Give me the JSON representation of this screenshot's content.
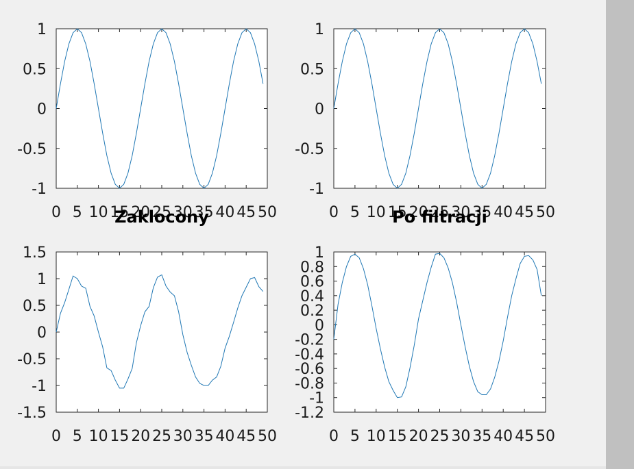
{
  "chart_data": [
    {
      "type": "line",
      "title": "",
      "xlabel": "",
      "ylabel": "",
      "xlim": [
        0,
        50
      ],
      "ylim": [
        -1,
        1
      ],
      "x_ticks": [
        "0",
        "5",
        "10",
        "15",
        "20",
        "25",
        "30",
        "35",
        "40",
        "45",
        "50"
      ],
      "y_ticks": [
        "1",
        "0.5",
        "0",
        "-0.5",
        "-1"
      ],
      "series_color": "#1f77b4",
      "x": [
        0,
        1,
        2,
        3,
        4,
        5,
        6,
        7,
        8,
        9,
        10,
        11,
        12,
        13,
        14,
        15,
        16,
        17,
        18,
        19,
        20,
        21,
        22,
        23,
        24,
        25,
        26,
        27,
        28,
        29,
        30,
        31,
        32,
        33,
        34,
        35,
        36,
        37,
        38,
        39,
        40,
        41,
        42,
        43,
        44,
        45,
        46,
        47,
        48,
        49
      ],
      "values": [
        0.0,
        0.31,
        0.59,
        0.81,
        0.95,
        1.0,
        0.95,
        0.81,
        0.59,
        0.31,
        0.0,
        -0.31,
        -0.59,
        -0.81,
        -0.95,
        -1.0,
        -0.95,
        -0.81,
        -0.59,
        -0.31,
        0.0,
        0.31,
        0.59,
        0.81,
        0.95,
        1.0,
        0.95,
        0.81,
        0.59,
        0.31,
        0.0,
        -0.31,
        -0.59,
        -0.81,
        -0.95,
        -1.0,
        -0.95,
        -0.81,
        -0.59,
        -0.31,
        0.0,
        0.31,
        0.59,
        0.81,
        0.95,
        1.0,
        0.95,
        0.81,
        0.59,
        0.31
      ]
    },
    {
      "type": "line",
      "title": "",
      "xlabel": "",
      "ylabel": "",
      "xlim": [
        0,
        50
      ],
      "ylim": [
        -1,
        1
      ],
      "x_ticks": [
        "0",
        "5",
        "10",
        "15",
        "20",
        "25",
        "30",
        "35",
        "40",
        "45",
        "50"
      ],
      "y_ticks": [
        "1",
        "0.5",
        "0",
        "-0.5",
        "-1"
      ],
      "series_color": "#1f77b4",
      "x": [
        0,
        1,
        2,
        3,
        4,
        5,
        6,
        7,
        8,
        9,
        10,
        11,
        12,
        13,
        14,
        15,
        16,
        17,
        18,
        19,
        20,
        21,
        22,
        23,
        24,
        25,
        26,
        27,
        28,
        29,
        30,
        31,
        32,
        33,
        34,
        35,
        36,
        37,
        38,
        39,
        40,
        41,
        42,
        43,
        44,
        45,
        46,
        47,
        48,
        49
      ],
      "values": [
        0.0,
        0.31,
        0.59,
        0.81,
        0.95,
        1.0,
        0.95,
        0.81,
        0.59,
        0.31,
        0.0,
        -0.31,
        -0.59,
        -0.81,
        -0.95,
        -1.0,
        -0.95,
        -0.81,
        -0.59,
        -0.31,
        0.0,
        0.31,
        0.59,
        0.81,
        0.95,
        1.0,
        0.95,
        0.81,
        0.59,
        0.31,
        0.0,
        -0.31,
        -0.59,
        -0.81,
        -0.95,
        -1.0,
        -0.95,
        -0.81,
        -0.59,
        -0.31,
        0.0,
        0.31,
        0.59,
        0.81,
        0.95,
        1.0,
        0.95,
        0.81,
        0.59,
        0.31
      ]
    },
    {
      "type": "line",
      "title": "Zaklocony",
      "xlabel": "",
      "ylabel": "",
      "xlim": [
        0,
        50
      ],
      "ylim": [
        -1.5,
        1.5
      ],
      "x_ticks": [
        "0",
        "5",
        "10",
        "15",
        "20",
        "25",
        "30",
        "35",
        "40",
        "45",
        "50"
      ],
      "y_ticks": [
        "1.5",
        "1",
        "0.5",
        "0",
        "-0.5",
        "-1",
        "-1.5"
      ],
      "series_color": "#1f77b4",
      "x": [
        0,
        1,
        2,
        3,
        4,
        5,
        6,
        7,
        8,
        9,
        10,
        11,
        12,
        13,
        14,
        15,
        16,
        17,
        18,
        19,
        20,
        21,
        22,
        23,
        24,
        25,
        26,
        27,
        28,
        29,
        30,
        31,
        32,
        33,
        34,
        35,
        36,
        37,
        38,
        39,
        40,
        41,
        42,
        43,
        44,
        45,
        46,
        47,
        48,
        49
      ],
      "values": [
        0.0,
        0.35,
        0.55,
        0.8,
        1.05,
        1.0,
        0.86,
        0.82,
        0.48,
        0.3,
        0.0,
        -0.28,
        -0.67,
        -0.72,
        -0.9,
        -1.05,
        -1.05,
        -0.88,
        -0.68,
        -0.2,
        0.12,
        0.38,
        0.48,
        0.83,
        1.03,
        1.07,
        0.86,
        0.75,
        0.68,
        0.38,
        -0.05,
        -0.38,
        -0.62,
        -0.84,
        -0.96,
        -1.0,
        -1.0,
        -0.9,
        -0.84,
        -0.64,
        -0.3,
        -0.08,
        0.18,
        0.45,
        0.68,
        0.84,
        1.0,
        1.02,
        0.85,
        0.76
      ]
    },
    {
      "type": "line",
      "title": "Po filtracji",
      "xlabel": "",
      "ylabel": "",
      "xlim": [
        0,
        50
      ],
      "ylim": [
        -1.2,
        1
      ],
      "x_ticks": [
        "0",
        "5",
        "10",
        "15",
        "20",
        "25",
        "30",
        "35",
        "40",
        "45",
        "50"
      ],
      "y_ticks": [
        "1",
        "0.8",
        "0.6",
        "0.4",
        "0.2",
        "0",
        "-0.2",
        "-0.4",
        "-0.6",
        "-0.8",
        "-1",
        "-1.2"
      ],
      "series_color": "#1f77b4",
      "x": [
        0,
        1,
        2,
        3,
        4,
        5,
        6,
        7,
        8,
        9,
        10,
        11,
        12,
        13,
        14,
        15,
        16,
        17,
        18,
        19,
        20,
        21,
        22,
        23,
        24,
        25,
        26,
        27,
        28,
        29,
        30,
        31,
        32,
        33,
        34,
        35,
        36,
        37,
        38,
        39,
        40,
        41,
        42,
        43,
        44,
        45,
        46,
        47,
        48,
        49
      ],
      "values": [
        -0.2,
        0.28,
        0.58,
        0.8,
        0.94,
        0.97,
        0.92,
        0.77,
        0.55,
        0.26,
        -0.05,
        -0.33,
        -0.58,
        -0.78,
        -0.9,
        -1.0,
        -0.99,
        -0.85,
        -0.59,
        -0.28,
        0.08,
        0.33,
        0.58,
        0.79,
        0.97,
        0.98,
        0.92,
        0.78,
        0.58,
        0.31,
        0.0,
        -0.3,
        -0.57,
        -0.78,
        -0.92,
        -0.96,
        -0.96,
        -0.88,
        -0.72,
        -0.5,
        -0.22,
        0.1,
        0.4,
        0.63,
        0.84,
        0.94,
        0.95,
        0.89,
        0.76,
        0.4
      ]
    }
  ]
}
